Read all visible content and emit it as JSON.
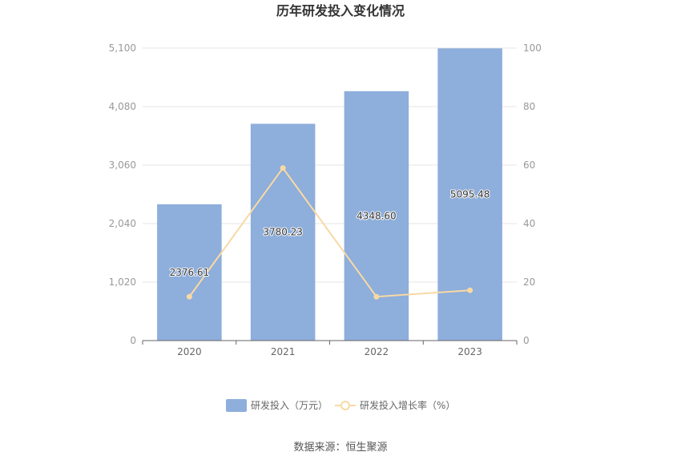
{
  "chart_data": {
    "type": "bar",
    "title": "历年研发投入变化情况",
    "categories": [
      "2020",
      "2021",
      "2022",
      "2023"
    ],
    "series": [
      {
        "name": "研发投入（万元）",
        "type": "bar",
        "axis": "left",
        "values": [
          2376.61,
          3780.23,
          4348.6,
          5095.48
        ],
        "labels": [
          "2376.61",
          "3780.23",
          "4348.60",
          "5095.48"
        ],
        "color": "#8eaedb"
      },
      {
        "name": "研发投入增长率（%）",
        "type": "line",
        "axis": "right",
        "values": [
          15.0,
          59.0,
          15.0,
          17.2
        ],
        "color": "#f8d9a4"
      }
    ],
    "y_left": {
      "min": 0,
      "max": 5100,
      "ticks": [
        0,
        1020,
        2040,
        3060,
        4080,
        5100
      ],
      "tick_labels": [
        "0",
        "1,020",
        "2,040",
        "3,060",
        "4,080",
        "5,100"
      ]
    },
    "y_right": {
      "min": 0,
      "max": 100,
      "ticks": [
        0,
        20,
        40,
        60,
        80,
        100
      ],
      "tick_labels": [
        "0",
        "20",
        "40",
        "60",
        "80",
        "100"
      ]
    },
    "grid": true,
    "legend_position": "bottom-center",
    "source": "数据来源：恒生聚源"
  }
}
